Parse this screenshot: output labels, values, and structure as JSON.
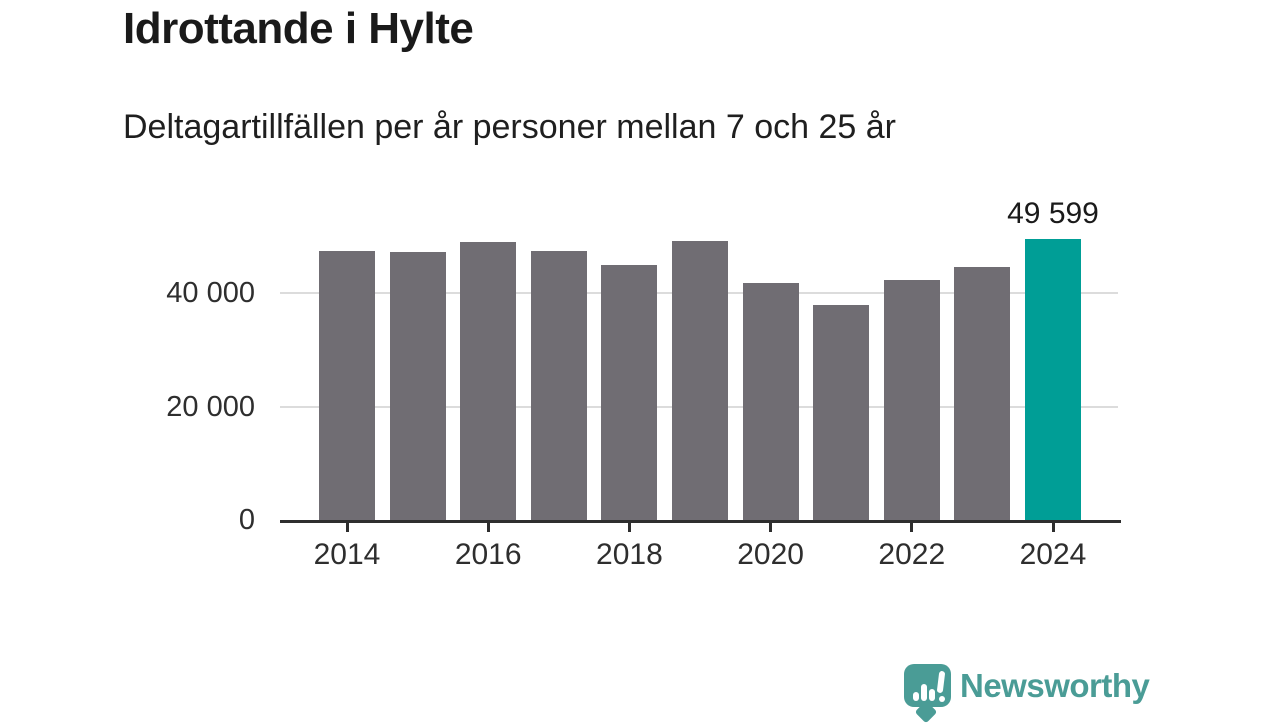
{
  "header": {
    "title": "Idrottande i Hylte",
    "subtitle": "Deltagartillfällen per år personer mellan 7 och 25 år"
  },
  "chart_data": {
    "type": "bar",
    "title": "Idrottande i Hylte",
    "subtitle": "Deltagartillfällen per år personer mellan 7 och 25 år",
    "categories": [
      "2014",
      "2015",
      "2016",
      "2017",
      "2018",
      "2019",
      "2020",
      "2021",
      "2022",
      "2023",
      "2024"
    ],
    "values": [
      47400,
      47250,
      49050,
      47500,
      45000,
      49250,
      41800,
      37950,
      42350,
      44700,
      49599
    ],
    "highlight_index": 10,
    "highlight_label": "49 599",
    "bar_color": "#706d73",
    "highlight_color": "#009e96",
    "grid": "horizontal",
    "legend": "none",
    "ylim": [
      0,
      51000
    ],
    "yticks": [
      {
        "label": "0",
        "value": 0
      },
      {
        "label": "20 000",
        "value": 20000
      },
      {
        "label": "40 000",
        "value": 40000
      }
    ],
    "xticks": [
      "2014",
      "2016",
      "2018",
      "2020",
      "2022",
      "2024"
    ],
    "xlabel": "",
    "ylabel": ""
  },
  "footer": {
    "brand": "Newsworthy",
    "brand_color": "#4a9c96",
    "logo_icon": "bar-chart-speech-bubble-icon"
  }
}
